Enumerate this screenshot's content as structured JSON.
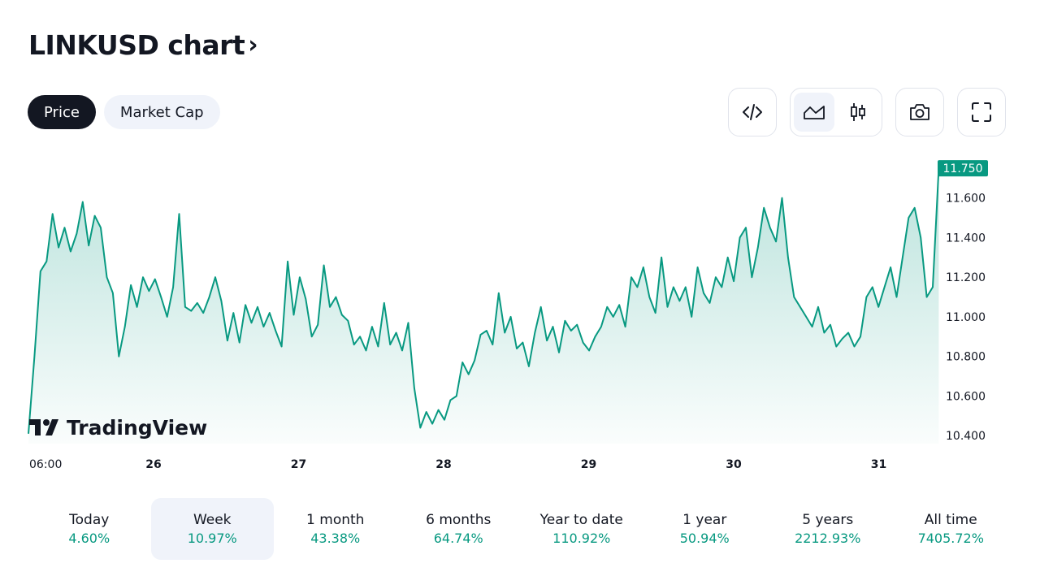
{
  "header": {
    "title": "LINKUSD chart",
    "chevron": "›"
  },
  "tabs": [
    {
      "label": "Price",
      "active": true
    },
    {
      "label": "Market Cap",
      "active": false
    }
  ],
  "toolbar": {
    "embed_icon": "code-icon",
    "area_icon": "area-chart-icon",
    "candle_icon": "candlestick-icon",
    "snapshot_icon": "camera-icon",
    "fullscreen_icon": "fullscreen-icon",
    "active_style": "area"
  },
  "watermark": {
    "text": "TradingView",
    "icon": "tradingview-logo"
  },
  "colors": {
    "line": "#089981",
    "accent": "#089981",
    "text": "#131722",
    "active_bg": "#f0f3fa",
    "dark_pill": "#131722"
  },
  "chart_data": {
    "type": "area",
    "x_ticks": [
      "06:00",
      "26",
      "27",
      "28",
      "29",
      "30",
      "31"
    ],
    "y_ticks": [
      "11.600",
      "11.400",
      "11.200",
      "11.000",
      "10.800",
      "10.600",
      "10.400"
    ],
    "ylim": [
      10.36,
      11.82
    ],
    "xlim": [
      0,
      150
    ],
    "current_price": "11.750",
    "series": [
      {
        "values": [
          10.41,
          10.8,
          11.23,
          11.28,
          11.52,
          11.35,
          11.45,
          11.33,
          11.42,
          11.58,
          11.36,
          11.51,
          11.45,
          11.2,
          11.12,
          10.8,
          10.95,
          11.16,
          11.05,
          11.2,
          11.13,
          11.19,
          11.1,
          11.0,
          11.15,
          11.52,
          11.05,
          11.03,
          11.07,
          11.02,
          11.1,
          11.2,
          11.08,
          10.88,
          11.02,
          10.87,
          11.06,
          10.97,
          11.05,
          10.95,
          11.02,
          10.93,
          10.85,
          11.28,
          11.01,
          11.2,
          11.09,
          10.9,
          10.96,
          11.26,
          11.05,
          11.1,
          11.01,
          10.98,
          10.86,
          10.9,
          10.83,
          10.95,
          10.85,
          11.07,
          10.86,
          10.92,
          10.83,
          10.97,
          10.64,
          10.44,
          10.52,
          10.46,
          10.53,
          10.48,
          10.58,
          10.6,
          10.77,
          10.71,
          10.78,
          10.91,
          10.93,
          10.86,
          11.12,
          10.92,
          11.0,
          10.84,
          10.87,
          10.75,
          10.92,
          11.05,
          10.88,
          10.95,
          10.82,
          10.98,
          10.93,
          10.96,
          10.87,
          10.83,
          10.9,
          10.95,
          11.05,
          11.0,
          11.06,
          10.95,
          11.2,
          11.15,
          11.25,
          11.1,
          11.02,
          11.3,
          11.05,
          11.15,
          11.08,
          11.15,
          11.0,
          11.25,
          11.12,
          11.07,
          11.2,
          11.15,
          11.3,
          11.18,
          11.4,
          11.45,
          11.2,
          11.35,
          11.55,
          11.45,
          11.38,
          11.6,
          11.3,
          11.1,
          11.05,
          11.0,
          10.95,
          11.05,
          10.92,
          10.96,
          10.85,
          10.89,
          10.92,
          10.85,
          10.9,
          11.1,
          11.15,
          11.05,
          11.15,
          11.25,
          11.1,
          11.3,
          11.5,
          11.55,
          11.4,
          11.1,
          11.15,
          11.75
        ]
      }
    ]
  },
  "stats": [
    {
      "label": "Today",
      "value": "4.60%",
      "active": false
    },
    {
      "label": "Week",
      "value": "10.97%",
      "active": true
    },
    {
      "label": "1 month",
      "value": "43.38%",
      "active": false
    },
    {
      "label": "6 months",
      "value": "64.74%",
      "active": false
    },
    {
      "label": "Year to date",
      "value": "110.92%",
      "active": false
    },
    {
      "label": "1 year",
      "value": "50.94%",
      "active": false
    },
    {
      "label": "5 years",
      "value": "2212.93%",
      "active": false
    },
    {
      "label": "All time",
      "value": "7405.72%",
      "active": false
    }
  ]
}
